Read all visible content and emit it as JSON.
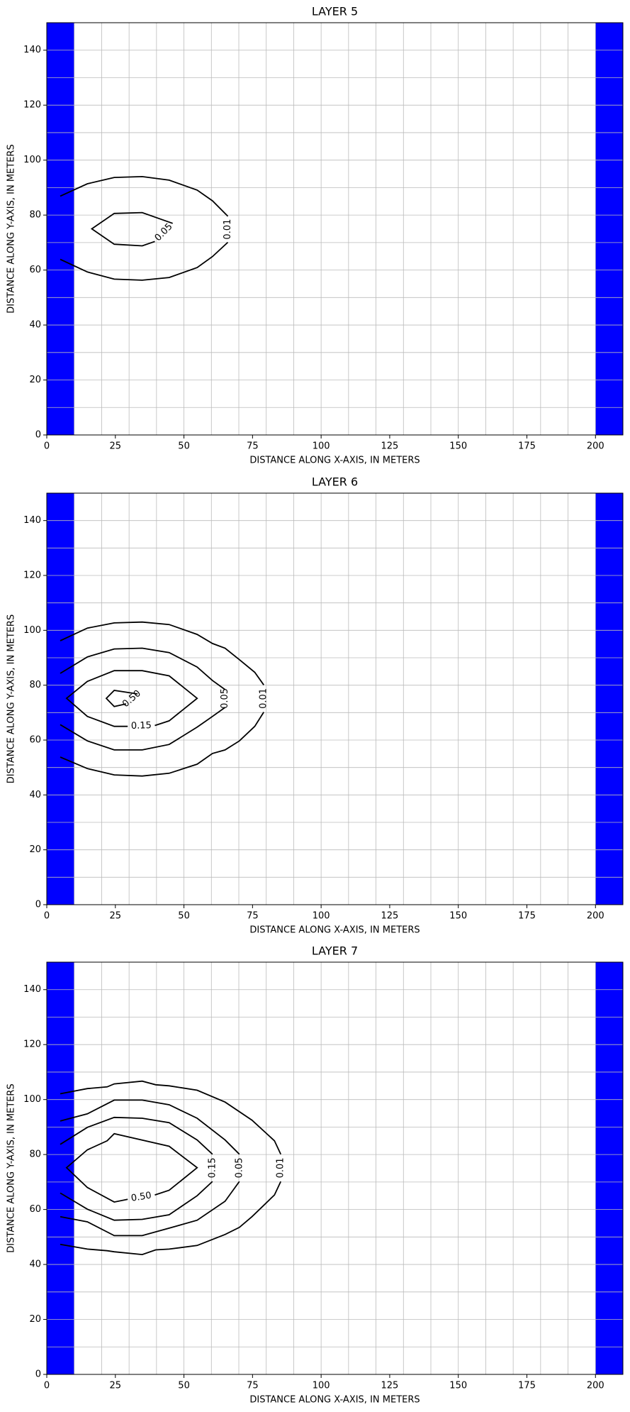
{
  "chart_data": [
    {
      "type": "contour",
      "title": "LAYER 5",
      "xlabel": "DISTANCE ALONG X-AXIS, IN METERS",
      "ylabel": "DISTANCE ALONG Y-AXIS, IN METERS",
      "xlim": [
        0,
        210
      ],
      "ylim": [
        0,
        150
      ],
      "xticks": [
        0,
        25,
        50,
        75,
        100,
        125,
        150,
        175,
        200
      ],
      "yticks": [
        0,
        20,
        40,
        60,
        80,
        100,
        120,
        140
      ],
      "model_grid_x": [
        10,
        20,
        30,
        40,
        50,
        60,
        70,
        80,
        90,
        100,
        110,
        120,
        130,
        140,
        150,
        160,
        170,
        180,
        190,
        200
      ],
      "model_grid_y": [
        10,
        20,
        30,
        40,
        50,
        60,
        70,
        80,
        90,
        100,
        110,
        120,
        130,
        140
      ],
      "boundary_cells": {
        "color": "#0000ff",
        "x": [
          [
            0,
            10
          ],
          [
            200,
            210
          ]
        ]
      },
      "contour_color": "#000000",
      "contours": [
        {
          "label": "0.01",
          "x": [
            4.9,
            14.8,
            24.6,
            34.8,
            44.6,
            54.8,
            60.4,
            66,
            null,
            66,
            60.4,
            54.8,
            44.6,
            34.8,
            24.6,
            14.8,
            4.9
          ],
          "y": [
            86.9,
            91.4,
            93.7,
            94,
            92.7,
            89.1,
            85.2,
            79.6,
            null,
            70.1,
            64.9,
            60.9,
            57.3,
            56.3,
            56.7,
            59.3,
            63.9
          ]
        },
        {
          "label": "0.05",
          "x": [
            45.9,
            34.8,
            24.6,
            16.4,
            24.6,
            34.8,
            39.4
          ],
          "y": [
            77,
            80.9,
            80.6,
            75,
            69.4,
            68.8,
            70.4
          ]
        }
      ]
    },
    {
      "type": "contour",
      "title": "LAYER 6",
      "xlabel": "DISTANCE ALONG X-AXIS, IN METERS",
      "ylabel": "DISTANCE ALONG Y-AXIS, IN METERS",
      "xlim": [
        0,
        210
      ],
      "ylim": [
        0,
        150
      ],
      "xticks": [
        0,
        25,
        50,
        75,
        100,
        125,
        150,
        175,
        200
      ],
      "yticks": [
        0,
        20,
        40,
        60,
        80,
        100,
        120,
        140
      ],
      "model_grid_x": [
        10,
        20,
        30,
        40,
        50,
        60,
        70,
        80,
        90,
        100,
        110,
        120,
        130,
        140,
        150,
        160,
        170,
        180,
        190,
        200
      ],
      "model_grid_y": [
        10,
        20,
        30,
        40,
        50,
        60,
        70,
        80,
        90,
        100,
        110,
        120,
        130,
        140
      ],
      "boundary_cells": {
        "color": "#0000ff",
        "x": [
          [
            0,
            10
          ],
          [
            200,
            210
          ]
        ]
      },
      "contour_color": "#000000",
      "contours": [
        {
          "label": "0.01",
          "x": [
            4.9,
            14.8,
            24.6,
            34.8,
            44.6,
            54.8,
            60.4,
            65,
            70.2,
            75.8,
            79.1,
            null,
            79.1,
            75.8,
            70.2,
            65,
            60.4,
            54.8,
            44.6,
            34.8,
            24.6,
            14.8,
            4.9
          ],
          "y": [
            96.2,
            100.8,
            102.7,
            103,
            102.1,
            98.5,
            95.2,
            93.5,
            89.3,
            84.7,
            80.1,
            null,
            70.2,
            65,
            59.7,
            56.4,
            55.1,
            51.2,
            47.9,
            46.9,
            47.3,
            49.6,
            53.8
          ]
        },
        {
          "label": "0.05",
          "x": [
            4.9,
            14.8,
            24.6,
            34.8,
            44.6,
            54.8,
            60.4,
            65,
            null,
            65,
            60.4,
            54.8,
            44.6,
            34.8,
            24.6,
            14.8,
            4.9
          ],
          "y": [
            84.3,
            90.3,
            93.2,
            93.5,
            91.9,
            86.6,
            81.7,
            78.4,
            null,
            71.9,
            68.6,
            64.7,
            58.4,
            56.4,
            56.4,
            59.7,
            65.6
          ]
        },
        {
          "label": "0.15",
          "x": [
            39.4,
            44.6,
            54.8,
            44.6,
            34.8,
            24.6,
            14.8,
            7.2,
            14.8,
            24.6,
            29.5
          ],
          "y": [
            65.3,
            67,
            75.2,
            83.4,
            85.3,
            85.3,
            81.4,
            75.2,
            68.6,
            65,
            65
          ]
        },
        {
          "label": "0.50",
          "x": [
            33.1,
            24.6,
            21.7,
            24.6,
            28.9
          ],
          "y": [
            76.8,
            78.1,
            75.2,
            72.2,
            73.2
          ]
        }
      ]
    },
    {
      "type": "contour",
      "title": "LAYER 7",
      "xlabel": "DISTANCE ALONG X-AXIS, IN METERS",
      "ylabel": "DISTANCE ALONG Y-AXIS, IN METERS",
      "xlim": [
        0,
        210
      ],
      "ylim": [
        0,
        150
      ],
      "xticks": [
        0,
        25,
        50,
        75,
        100,
        125,
        150,
        175,
        200
      ],
      "yticks": [
        0,
        20,
        40,
        60,
        80,
        100,
        120,
        140
      ],
      "model_grid_x": [
        10,
        20,
        30,
        40,
        50,
        60,
        70,
        80,
        90,
        100,
        110,
        120,
        130,
        140,
        150,
        160,
        170,
        180,
        190,
        200
      ],
      "model_grid_y": [
        10,
        20,
        30,
        40,
        50,
        60,
        70,
        80,
        90,
        100,
        110,
        120,
        130,
        140
      ],
      "boundary_cells": {
        "color": "#0000ff",
        "x": [
          [
            0,
            10
          ],
          [
            200,
            210
          ]
        ]
      },
      "contour_color": "#000000",
      "contours": [
        {
          "label": "0.01",
          "x": [
            4.9,
            14.8,
            22,
            24.6,
            34.8,
            39.7,
            44.6,
            54.8,
            65,
            74.8,
            83,
            85.3,
            null,
            85.3,
            83,
            74.8,
            70.2,
            65,
            54.8,
            44.6,
            39.7,
            34.8,
            24.6,
            22,
            14.8,
            4.9
          ],
          "y": [
            102.1,
            104,
            104.6,
            105.7,
            106.7,
            105.4,
            105,
            103.4,
            99.1,
            92.5,
            85,
            80.1,
            null,
            70.2,
            65.3,
            57.4,
            53.5,
            50.9,
            46.9,
            45.6,
            45.3,
            43.6,
            44.6,
            45,
            45.6,
            47.3
          ]
        },
        {
          "label": "0.05",
          "x": [
            4.9,
            14.8,
            24.6,
            34.8,
            44.6,
            54.8,
            65,
            70.2,
            null,
            70.2,
            65,
            54.8,
            44.6,
            34.8,
            24.6,
            14.8,
            4.9
          ],
          "y": [
            92.2,
            94.8,
            99.8,
            99.8,
            98.1,
            93.2,
            85.3,
            80.1,
            null,
            70.2,
            63,
            56.1,
            53.2,
            50.5,
            50.5,
            55.5,
            57.4
          ]
        },
        {
          "label": "0.15",
          "x": [
            4.9,
            14.8,
            24.6,
            34.8,
            44.6,
            54.8,
            60.4,
            null,
            60.4,
            54.8,
            44.6,
            34.8,
            24.6,
            14.8,
            4.9
          ],
          "y": [
            83.7,
            89.9,
            93.5,
            93.2,
            91.6,
            85.3,
            80.1,
            null,
            70.2,
            65,
            58.1,
            56.4,
            56.1,
            60.1,
            66
          ]
        },
        {
          "label": "0.50",
          "x": [
            39.4,
            44.6,
            54.8,
            44.6,
            24.6,
            22,
            14.8,
            7.2,
            14.8,
            24.6,
            29.5
          ],
          "y": [
            65.3,
            67,
            75.2,
            83,
            87.6,
            85,
            81.7,
            75.2,
            68,
            62.7,
            63.7
          ]
        }
      ]
    }
  ]
}
